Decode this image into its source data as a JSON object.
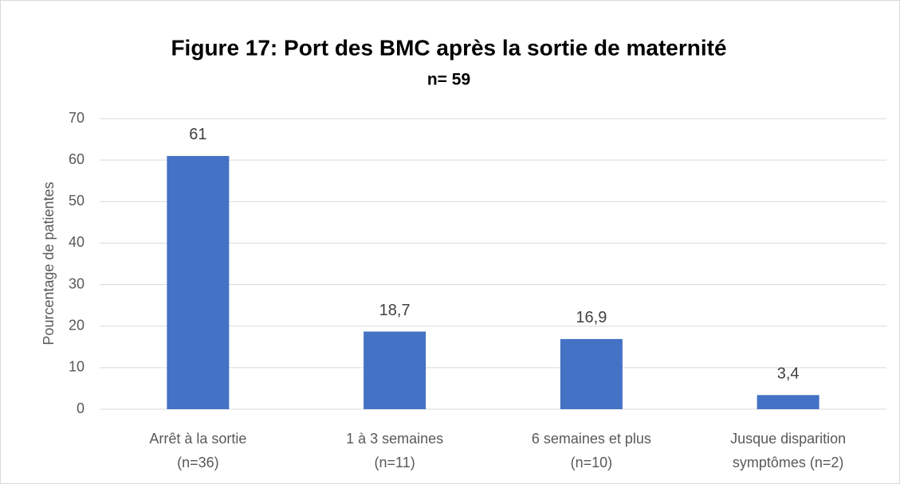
{
  "chart_data": {
    "type": "bar",
    "title": "Figure 17: Port des BMC après la sortie de maternité",
    "subtitle": "n= 59",
    "y_label": "Pourcentage de patientes",
    "categories": [
      [
        "Arrêt à la sortie",
        "(n=36)"
      ],
      [
        "1 à 3 semaines",
        "(n=11)"
      ],
      [
        "6 semaines et plus",
        "(n=10)"
      ],
      [
        "Jusque disparition",
        "symptômes (n=2)"
      ]
    ],
    "values": [
      61,
      18.7,
      16.9,
      3.4
    ],
    "value_labels": [
      "61",
      "18,7",
      "16,9",
      "3,4"
    ],
    "color": "#4472c4",
    "ylim": [
      0,
      70
    ],
    "yticks": [
      0,
      10,
      20,
      30,
      40,
      50,
      60,
      70
    ],
    "grid": true
  }
}
